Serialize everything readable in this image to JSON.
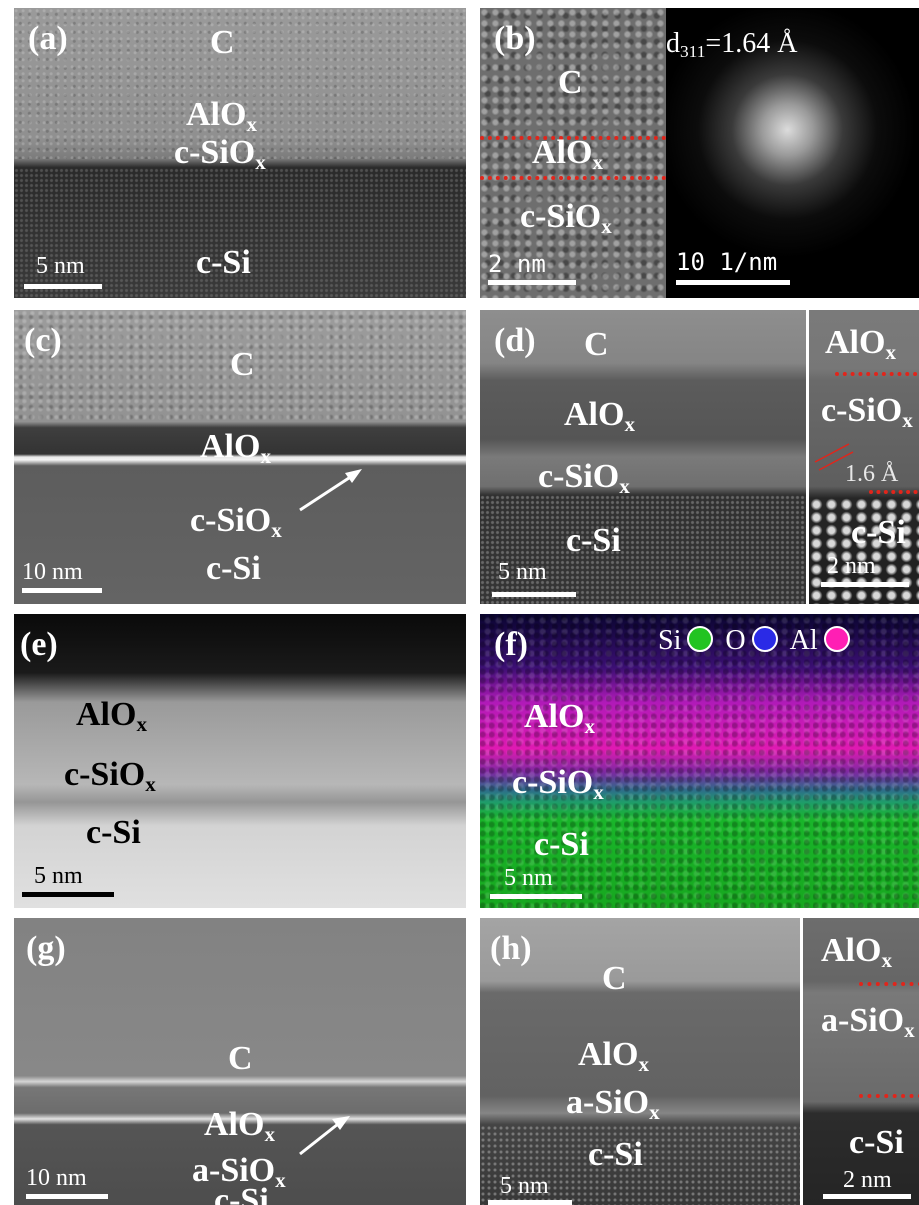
{
  "panels": {
    "a": {
      "tag": "(a)",
      "layers": [
        "C",
        "AlO",
        "c-SiO",
        "c-Si"
      ],
      "sub_x": "x",
      "scale": "5 nm"
    },
    "b": {
      "tag": "(b)",
      "layers": [
        "C",
        "AlO",
        "c-SiO"
      ],
      "sub_x": "x",
      "scale_left": "2 nm",
      "scale_right": "10 1/nm",
      "d_label_main": "d",
      "d_label_sub": "311",
      "d_label_value": "=1.64 Å"
    },
    "c": {
      "tag": "(c)",
      "layers": [
        "C",
        "AlO",
        "c-SiO",
        "c-Si"
      ],
      "sub_x": "x",
      "scale": "10 nm"
    },
    "d": {
      "tag": "(d)",
      "layers": [
        "C",
        "AlO",
        "c-SiO",
        "c-Si"
      ],
      "sub_x": "x",
      "scale": "5 nm",
      "inset_layers": [
        "AlO",
        "c-SiO",
        "c-Si"
      ],
      "inset_spacing": "1.6 Å",
      "inset_scale": "2 nm"
    },
    "e": {
      "tag": "(e)",
      "layers": [
        "AlO",
        "c-SiO",
        "c-Si"
      ],
      "sub_x": "x",
      "scale": "5 nm"
    },
    "f": {
      "tag": "(f)",
      "layers": [
        "AlO",
        "c-SiO",
        "c-Si"
      ],
      "sub_x": "x",
      "scale": "5 nm",
      "legend": [
        {
          "name": "Si",
          "color": "#22c322"
        },
        {
          "name": "O",
          "color": "#2a2ae6"
        },
        {
          "name": "Al",
          "color": "#ff1fb4"
        }
      ]
    },
    "g": {
      "tag": "(g)",
      "layers": [
        "C",
        "AlO",
        "a-SiO",
        "c-Si"
      ],
      "sub_x": "x",
      "scale": "10 nm"
    },
    "h": {
      "tag": "(h)",
      "layers": [
        "C",
        "AlO",
        "a-SiO",
        "c-Si"
      ],
      "sub_x": "x",
      "scale": "5 nm",
      "inset_layers": [
        "AlO",
        "a-SiO",
        "c-Si"
      ],
      "inset_scale": "2 nm"
    }
  },
  "colors": {
    "dashed_interface": "#e1251b",
    "scale_bar": "#ffffff",
    "scale_bar_dark": "#000000"
  }
}
